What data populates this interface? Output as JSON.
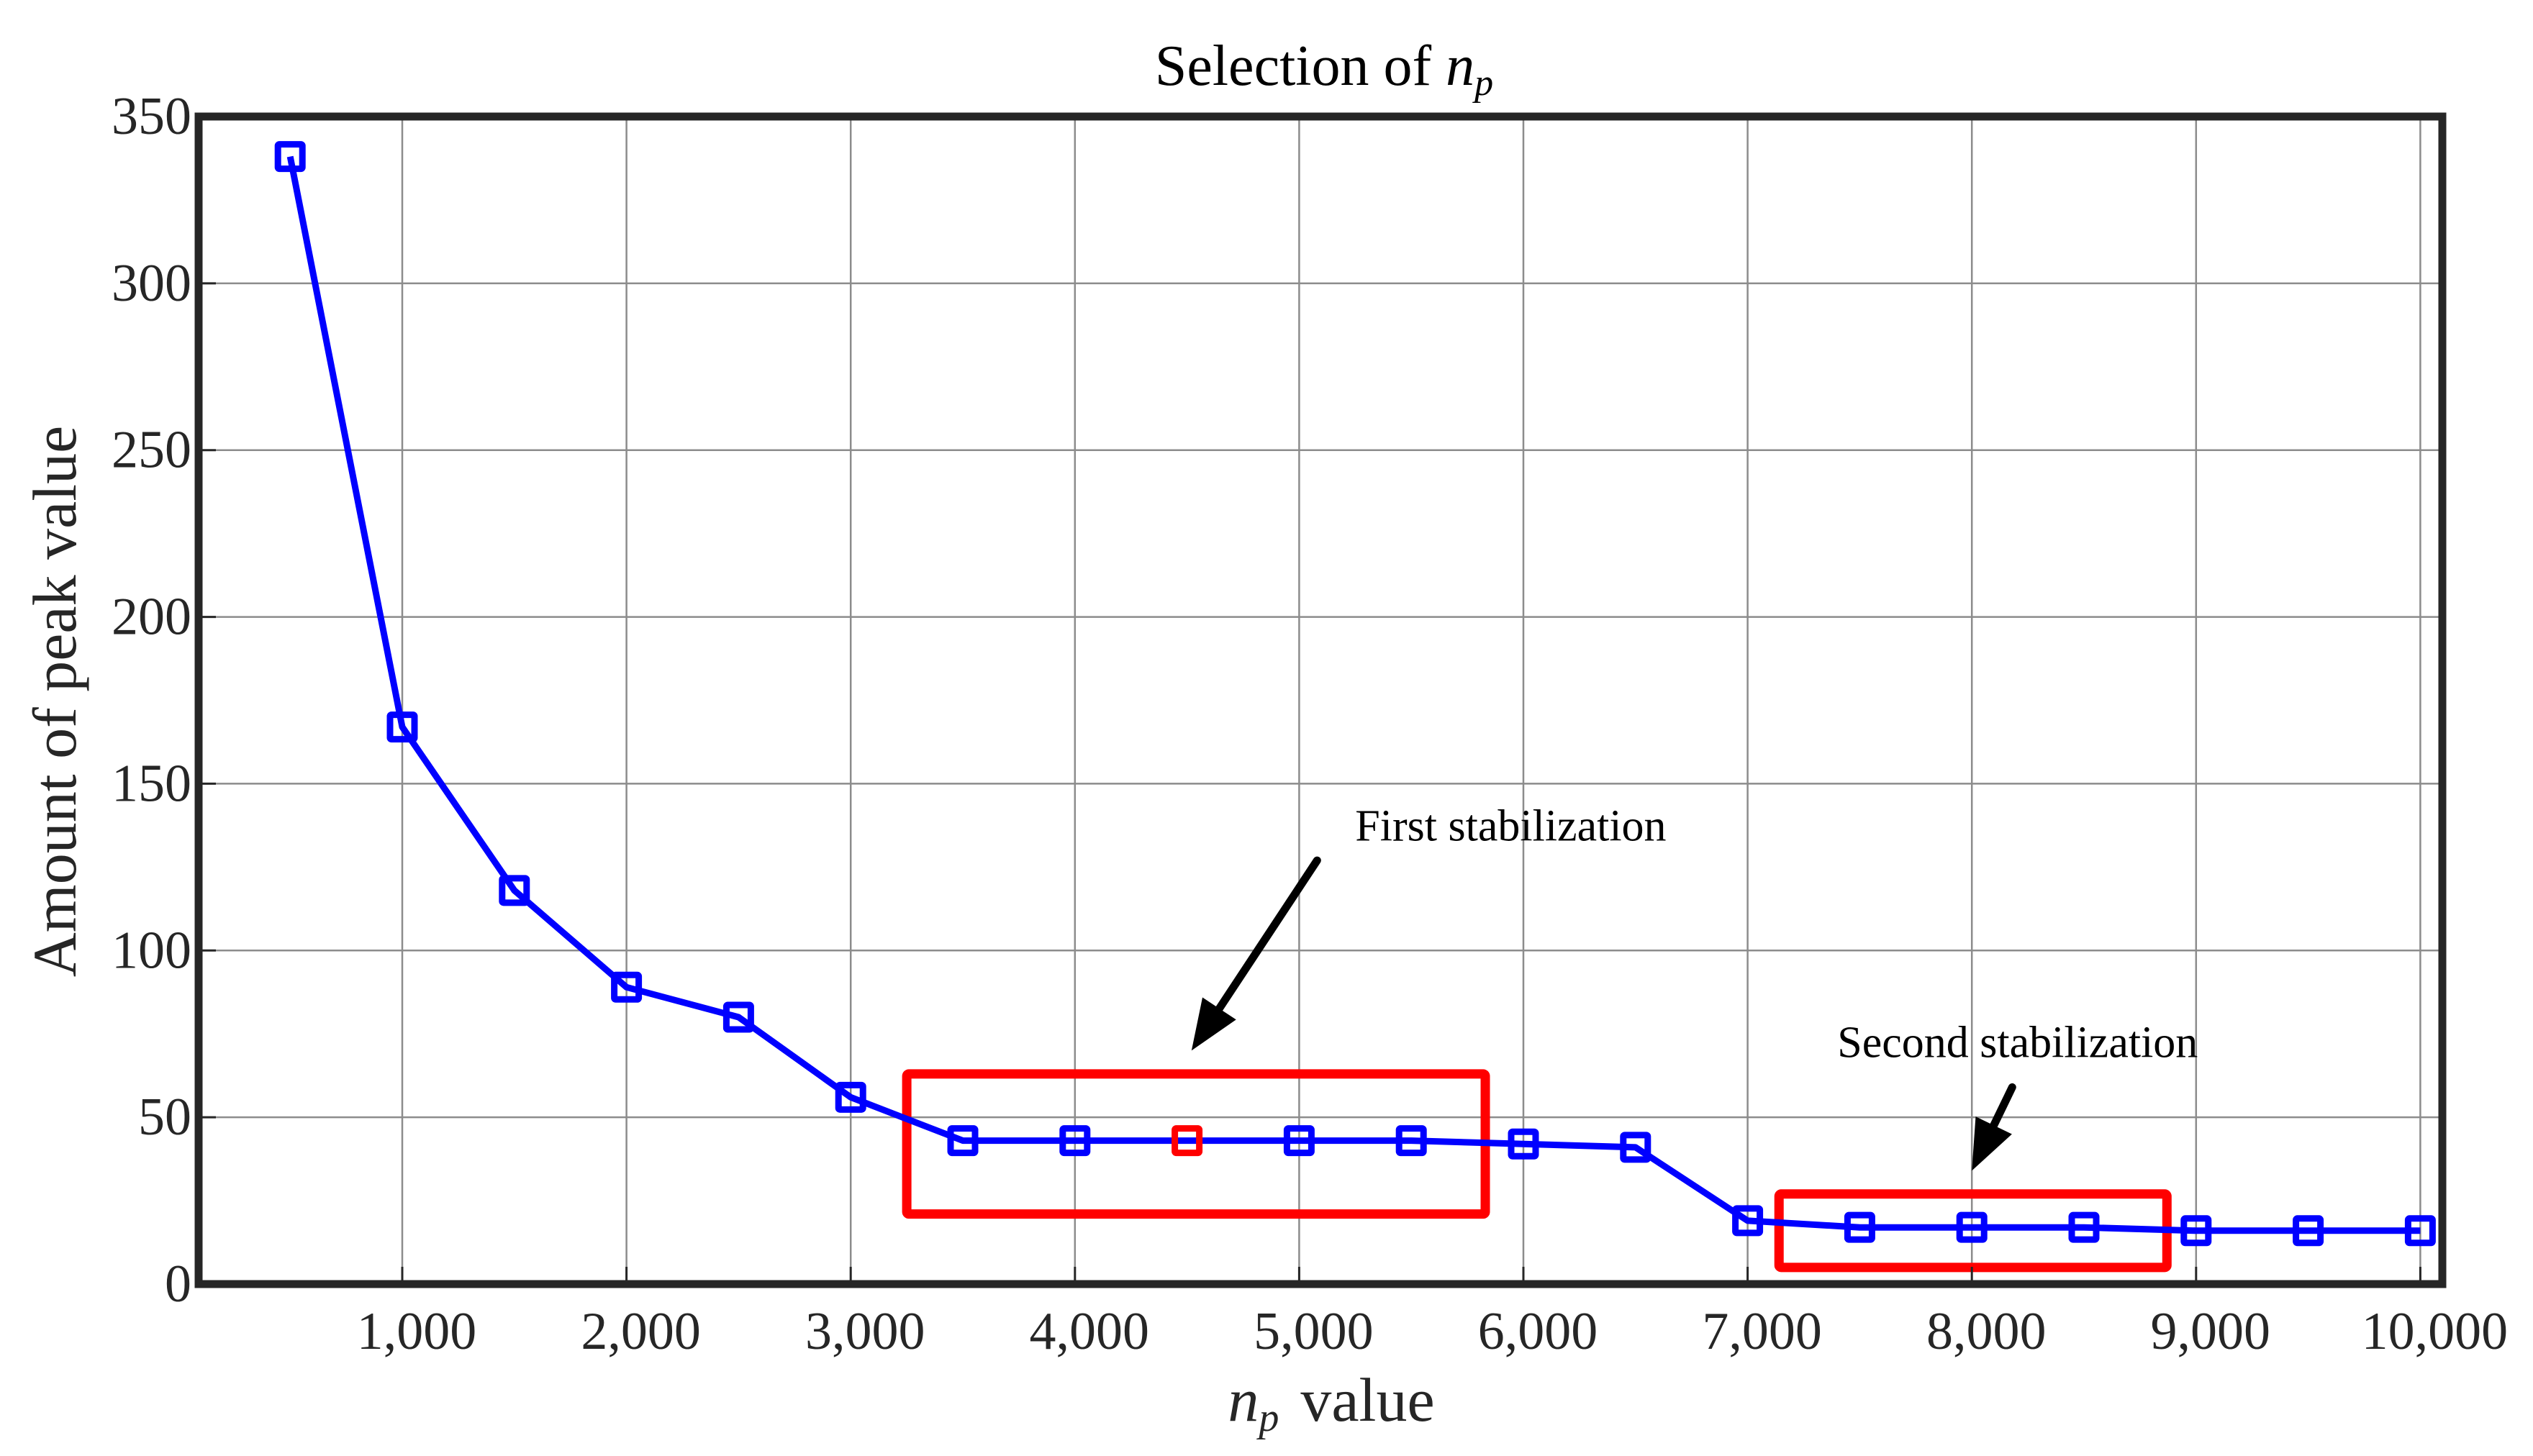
{
  "chart_data": {
    "type": "line",
    "title": "Selection of n_p",
    "title_parts": {
      "prefix": "Selection of ",
      "var": "n",
      "sub": "p"
    },
    "xlabel": "n_p value",
    "xlabel_parts": {
      "var": "n",
      "sub": "p",
      "suffix": "value"
    },
    "ylabel": "Amount of peak value",
    "xlim": [
      100,
      10050
    ],
    "ylim": [
      0,
      350
    ],
    "grid": true,
    "legend": null,
    "x_ticks": [
      1000,
      2000,
      3000,
      4000,
      5000,
      6000,
      7000,
      8000,
      9000,
      10000
    ],
    "x_tick_labels": [
      "1,000",
      "2,000",
      "3,000",
      "4,000",
      "5,000",
      "6,000",
      "7,000",
      "8,000",
      "9,000",
      "10,000"
    ],
    "y_ticks": [
      0,
      50,
      100,
      150,
      200,
      250,
      300,
      350
    ],
    "y_tick_labels": [
      "0",
      "50",
      "100",
      "150",
      "200",
      "250",
      "300",
      "350"
    ],
    "series": [
      {
        "name": "Amount of peak value",
        "color": "#0000ff",
        "marker": "square",
        "x": [
          500,
          1000,
          1500,
          2000,
          2500,
          3000,
          3500,
          4000,
          4500,
          5000,
          5500,
          6000,
          6500,
          7000,
          7500,
          8000,
          8500,
          9000,
          9500,
          10000
        ],
        "values": [
          338,
          167,
          118,
          89,
          80,
          56,
          43,
          43,
          43,
          43,
          43,
          42,
          41,
          19,
          17,
          17,
          17,
          16,
          16,
          16
        ],
        "highlight_index": 8,
        "highlight_color": "#ff0000"
      }
    ],
    "annotations": [
      {
        "text": "First stabilization",
        "box": {
          "x0": 3250,
          "x1": 5830,
          "y0": 21,
          "y1": 63
        },
        "box_color": "#ff0000",
        "text_pos": {
          "x": 5250,
          "y": 133
        },
        "arrow_from": {
          "x": 5080,
          "y": 127
        },
        "arrow_to": {
          "x": 4520,
          "y": 70
        }
      },
      {
        "text": "Second stabilization",
        "box": {
          "x0": 7140,
          "x1": 8870,
          "y0": 5,
          "y1": 27
        },
        "box_color": "#ff0000",
        "text_pos": {
          "x": 7400,
          "y": 68
        },
        "arrow_from": {
          "x": 8180,
          "y": 59
        },
        "arrow_to": {
          "x": 8000,
          "y": 34
        }
      }
    ]
  }
}
